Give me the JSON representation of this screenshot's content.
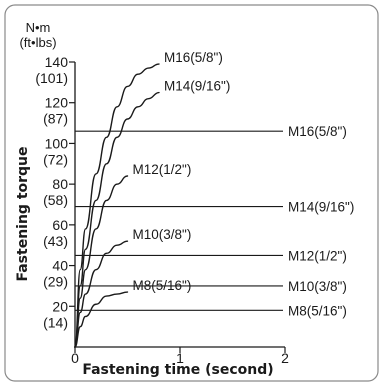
{
  "chart_data": {
    "type": "line",
    "xlabel": "Fastening time (second)",
    "ylabel": "Fastening torque",
    "y_unit_top": "N•m",
    "y_unit_sub": "(ft•lbs)",
    "xlim": [
      0,
      2
    ],
    "ylim": [
      0,
      140
    ],
    "x_ticks": [
      "0",
      "1",
      "2"
    ],
    "y_ticks": [
      {
        "nm": "20",
        "ft": "(14)"
      },
      {
        "nm": "40",
        "ft": "(29)"
      },
      {
        "nm": "60",
        "ft": "(43)"
      },
      {
        "nm": "80",
        "ft": "(58)"
      },
      {
        "nm": "100",
        "ft": "(72)"
      },
      {
        "nm": "120",
        "ft": "(87)"
      },
      {
        "nm": "140",
        "ft": "(101)"
      }
    ],
    "curves": [
      {
        "name": "M16(5/8\")",
        "points": [
          [
            0,
            0
          ],
          [
            0.05,
            38
          ],
          [
            0.1,
            58
          ],
          [
            0.2,
            85
          ],
          [
            0.3,
            103
          ],
          [
            0.4,
            118
          ],
          [
            0.5,
            128
          ],
          [
            0.6,
            134
          ],
          [
            0.7,
            137
          ],
          [
            0.8,
            139
          ]
        ]
      },
      {
        "name": "M14(9/16\")",
        "points": [
          [
            0,
            0
          ],
          [
            0.05,
            30
          ],
          [
            0.1,
            48
          ],
          [
            0.2,
            72
          ],
          [
            0.3,
            90
          ],
          [
            0.4,
            103
          ],
          [
            0.5,
            112
          ],
          [
            0.6,
            118
          ],
          [
            0.7,
            122
          ],
          [
            0.8,
            125
          ]
        ]
      },
      {
        "name": "M12(1/2\")",
        "points": [
          [
            0,
            0
          ],
          [
            0.05,
            24
          ],
          [
            0.1,
            38
          ],
          [
            0.2,
            58
          ],
          [
            0.3,
            72
          ],
          [
            0.4,
            80
          ],
          [
            0.5,
            84
          ]
        ]
      },
      {
        "name": "M10(3/8\")",
        "points": [
          [
            0,
            0
          ],
          [
            0.05,
            17
          ],
          [
            0.1,
            26
          ],
          [
            0.2,
            38
          ],
          [
            0.3,
            46
          ],
          [
            0.4,
            50
          ],
          [
            0.5,
            52
          ]
        ]
      },
      {
        "name": "M8(5/16\")",
        "points": [
          [
            0,
            0
          ],
          [
            0.05,
            10
          ],
          [
            0.1,
            15
          ],
          [
            0.2,
            21
          ],
          [
            0.3,
            25
          ],
          [
            0.4,
            26
          ],
          [
            0.5,
            27
          ]
        ]
      }
    ],
    "reference_lines": [
      {
        "name": "M16(5/8\")",
        "y": 106
      },
      {
        "name": "M14(9/16\")",
        "y": 69
      },
      {
        "name": "M12(1/2\")",
        "y": 45
      },
      {
        "name": "M10(3/8\")",
        "y": 30
      },
      {
        "name": "M8(5/16\")",
        "y": 18
      }
    ]
  }
}
